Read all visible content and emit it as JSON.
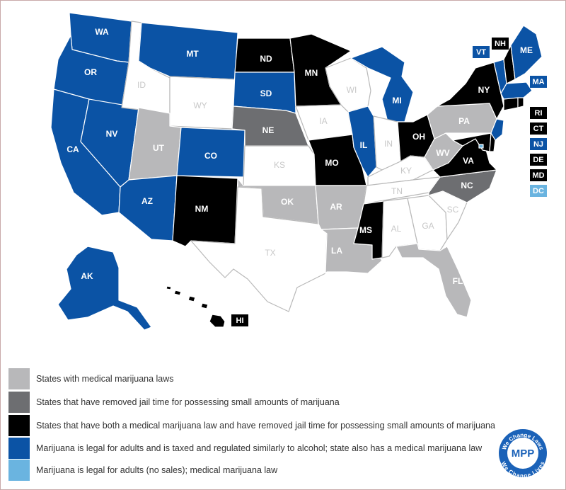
{
  "colors": {
    "medical": "#b8b8ba",
    "decriminalized": "#6d6e71",
    "both": "#000000",
    "legal_taxed": "#0b53a5",
    "legal_no_sales": "#6ab4e0",
    "none": "#ffffff"
  },
  "legend": [
    {
      "category": "medical",
      "text": "States with medical marijuana laws"
    },
    {
      "category": "decriminalized",
      "text": "States that have removed jail time for possessing small amounts of marijuana"
    },
    {
      "category": "both",
      "text": "States that have both a medical marijuana law and have removed jail time for possessing small amounts of marijuana"
    },
    {
      "category": "legal_taxed",
      "text": "Marijuana is legal for adults and is taxed and regulated similarly to alcohol; state also has a medical marijuana law"
    },
    {
      "category": "legal_no_sales",
      "text": "Marijuana is legal for adults (no sales); medical marijuana law"
    }
  ],
  "states": [
    {
      "abbr": "WA",
      "category": "legal_taxed"
    },
    {
      "abbr": "OR",
      "category": "legal_taxed"
    },
    {
      "abbr": "CA",
      "category": "legal_taxed"
    },
    {
      "abbr": "NV",
      "category": "legal_taxed"
    },
    {
      "abbr": "ID",
      "category": "none"
    },
    {
      "abbr": "MT",
      "category": "legal_taxed"
    },
    {
      "abbr": "WY",
      "category": "none"
    },
    {
      "abbr": "UT",
      "category": "medical"
    },
    {
      "abbr": "CO",
      "category": "legal_taxed"
    },
    {
      "abbr": "AZ",
      "category": "legal_taxed"
    },
    {
      "abbr": "NM",
      "category": "both"
    },
    {
      "abbr": "ND",
      "category": "both"
    },
    {
      "abbr": "SD",
      "category": "legal_taxed"
    },
    {
      "abbr": "NE",
      "category": "decriminalized"
    },
    {
      "abbr": "KS",
      "category": "none"
    },
    {
      "abbr": "OK",
      "category": "medical"
    },
    {
      "abbr": "TX",
      "category": "none"
    },
    {
      "abbr": "MN",
      "category": "both"
    },
    {
      "abbr": "IA",
      "category": "none"
    },
    {
      "abbr": "MO",
      "category": "both"
    },
    {
      "abbr": "AR",
      "category": "medical"
    },
    {
      "abbr": "LA",
      "category": "medical"
    },
    {
      "abbr": "WI",
      "category": "none"
    },
    {
      "abbr": "IL",
      "category": "legal_taxed"
    },
    {
      "abbr": "MI",
      "category": "legal_taxed"
    },
    {
      "abbr": "IN",
      "category": "none"
    },
    {
      "abbr": "OH",
      "category": "both"
    },
    {
      "abbr": "KY",
      "category": "none"
    },
    {
      "abbr": "TN",
      "category": "none"
    },
    {
      "abbr": "MS",
      "category": "both"
    },
    {
      "abbr": "AL",
      "category": "none"
    },
    {
      "abbr": "GA",
      "category": "none"
    },
    {
      "abbr": "FL",
      "category": "medical"
    },
    {
      "abbr": "SC",
      "category": "none"
    },
    {
      "abbr": "NC",
      "category": "decriminalized"
    },
    {
      "abbr": "VA",
      "category": "both"
    },
    {
      "abbr": "WV",
      "category": "medical"
    },
    {
      "abbr": "PA",
      "category": "medical"
    },
    {
      "abbr": "NY",
      "category": "both"
    },
    {
      "abbr": "VT",
      "category": "legal_taxed"
    },
    {
      "abbr": "NH",
      "category": "both"
    },
    {
      "abbr": "ME",
      "category": "legal_taxed"
    },
    {
      "abbr": "MA",
      "category": "legal_taxed"
    },
    {
      "abbr": "RI",
      "category": "both"
    },
    {
      "abbr": "CT",
      "category": "both"
    },
    {
      "abbr": "NJ",
      "category": "legal_taxed"
    },
    {
      "abbr": "DE",
      "category": "both"
    },
    {
      "abbr": "MD",
      "category": "both"
    },
    {
      "abbr": "DC",
      "category": "legal_no_sales"
    },
    {
      "abbr": "AK",
      "category": "legal_taxed"
    },
    {
      "abbr": "HI",
      "category": "both"
    }
  ],
  "logo": {
    "top_text": "We Change Laws",
    "monogram": "MPP",
    "bottom_text": "We Change Lives"
  }
}
